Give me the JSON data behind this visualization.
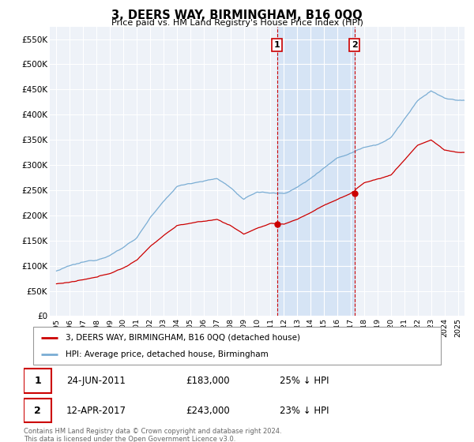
{
  "title": "3, DEERS WAY, BIRMINGHAM, B16 0QQ",
  "subtitle": "Price paid vs. HM Land Registry's House Price Index (HPI)",
  "hpi_label": "HPI: Average price, detached house, Birmingham",
  "price_label": "3, DEERS WAY, BIRMINGHAM, B16 0QQ (detached house)",
  "hpi_color": "#7aadd4",
  "price_color": "#cc0000",
  "background_color": "#ffffff",
  "plot_bg_color": "#eef2f8",
  "highlight_bg_color": "#d6e4f5",
  "grid_color": "#ffffff",
  "ylim": [
    0,
    575000
  ],
  "yticks": [
    0,
    50000,
    100000,
    150000,
    200000,
    250000,
    300000,
    350000,
    400000,
    450000,
    500000,
    550000
  ],
  "ytick_labels": [
    "£0",
    "£50K",
    "£100K",
    "£150K",
    "£200K",
    "£250K",
    "£300K",
    "£350K",
    "£400K",
    "£450K",
    "£500K",
    "£550K"
  ],
  "transactions": [
    {
      "price": 183000,
      "label": "1",
      "x_year": 2011.48
    },
    {
      "price": 243000,
      "label": "2",
      "x_year": 2017.28
    }
  ],
  "table_rows": [
    {
      "num": "1",
      "date": "24-JUN-2011",
      "price": "£183,000",
      "pct": "25% ↓ HPI"
    },
    {
      "num": "2",
      "date": "12-APR-2017",
      "price": "£243,000",
      "pct": "23% ↓ HPI"
    }
  ],
  "footnote": "Contains HM Land Registry data © Crown copyright and database right 2024.\nThis data is licensed under the Open Government Licence v3.0.",
  "xlim_start": 1994.5,
  "xlim_end": 2025.5,
  "highlight_start": 2011.48,
  "highlight_end": 2017.28,
  "hpi_yearly": {
    "1995": 88000,
    "1996": 97000,
    "1997": 103000,
    "1998": 108000,
    "1999": 120000,
    "2000": 135000,
    "2001": 155000,
    "2002": 195000,
    "2003": 225000,
    "2004": 255000,
    "2005": 262000,
    "2006": 268000,
    "2007": 272000,
    "2008": 255000,
    "2009": 230000,
    "2010": 245000,
    "2011": 243000,
    "2012": 242000,
    "2013": 255000,
    "2014": 272000,
    "2015": 295000,
    "2016": 315000,
    "2017": 325000,
    "2018": 338000,
    "2019": 345000,
    "2020": 358000,
    "2021": 395000,
    "2022": 430000,
    "2023": 450000,
    "2024": 435000,
    "2025": 430000
  },
  "price_yearly": {
    "1995": 65000,
    "1996": 68000,
    "1997": 72000,
    "1998": 76000,
    "1999": 84000,
    "2000": 95000,
    "2001": 110000,
    "2002": 138000,
    "2003": 160000,
    "2004": 180000,
    "2005": 185000,
    "2006": 188000,
    "2007": 192000,
    "2008": 180000,
    "2009": 163000,
    "2010": 175000,
    "2011": 183000,
    "2012": 182000,
    "2013": 192000,
    "2014": 205000,
    "2015": 220000,
    "2016": 232000,
    "2017": 243000,
    "2018": 265000,
    "2019": 272000,
    "2020": 280000,
    "2021": 310000,
    "2022": 340000,
    "2023": 350000,
    "2024": 330000,
    "2025": 325000
  }
}
